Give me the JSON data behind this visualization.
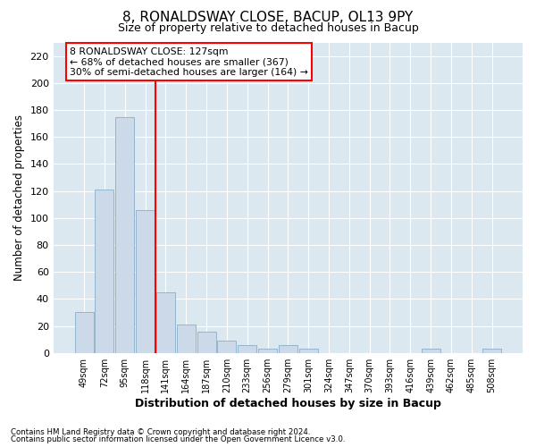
{
  "title1": "8, RONALDSWAY CLOSE, BACUP, OL13 9PY",
  "title2": "Size of property relative to detached houses in Bacup",
  "xlabel": "Distribution of detached houses by size in Bacup",
  "ylabel": "Number of detached properties",
  "footer1": "Contains HM Land Registry data © Crown copyright and database right 2024.",
  "footer2": "Contains public sector information licensed under the Open Government Licence v3.0.",
  "bin_labels": [
    "49sqm",
    "72sqm",
    "95sqm",
    "118sqm",
    "141sqm",
    "164sqm",
    "187sqm",
    "210sqm",
    "233sqm",
    "256sqm",
    "279sqm",
    "301sqm",
    "324sqm",
    "347sqm",
    "370sqm",
    "393sqm",
    "416sqm",
    "439sqm",
    "462sqm",
    "485sqm",
    "508sqm"
  ],
  "bar_values": [
    30,
    121,
    175,
    106,
    45,
    21,
    16,
    9,
    6,
    3,
    6,
    3,
    0,
    0,
    0,
    0,
    0,
    3,
    0,
    0,
    3
  ],
  "bar_color": "#ccd9e8",
  "bar_edge_color": "#8aaec8",
  "vline_x": 3.5,
  "vline_color": "red",
  "annotation_title": "8 RONALDSWAY CLOSE: 127sqm",
  "annotation_line2": "← 68% of detached houses are smaller (367)",
  "annotation_line3": "30% of semi-detached houses are larger (164) →",
  "ylim": [
    0,
    230
  ],
  "yticks": [
    0,
    20,
    40,
    60,
    80,
    100,
    120,
    140,
    160,
    180,
    200,
    220
  ],
  "figure_background": "#ffffff",
  "axes_background": "#dce8f0",
  "grid_color": "#ffffff"
}
